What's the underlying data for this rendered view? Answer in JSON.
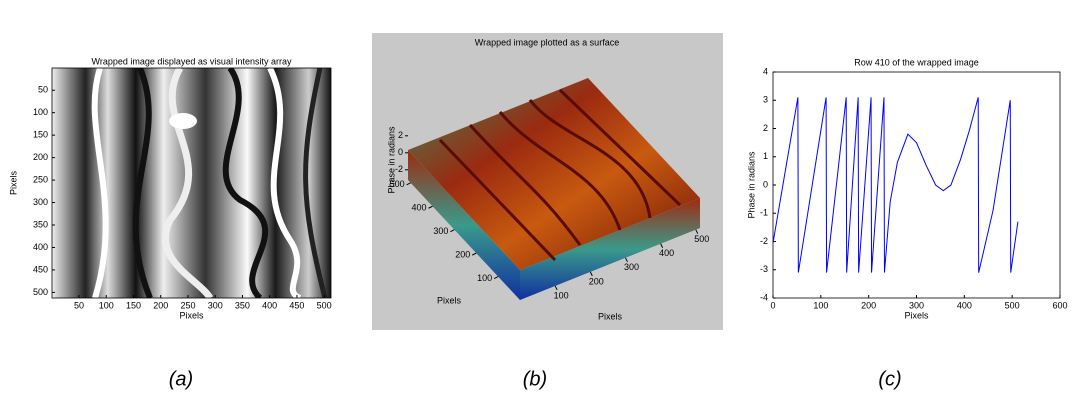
{
  "chart_data": [
    {
      "type": "image",
      "title": "Wrapped image displayed as visual intensity array",
      "xlabel": "Pixels",
      "ylabel": "Pixels",
      "xlim": [
        0.5,
        512.5
      ],
      "ylim": [
        0.5,
        512.5
      ],
      "y_reversed": true,
      "xticks": [
        50,
        100,
        150,
        200,
        250,
        300,
        350,
        400,
        450,
        500
      ],
      "yticks": [
        50,
        100,
        150,
        200,
        250,
        300,
        350,
        400,
        450,
        500
      ],
      "caption": "(a)"
    },
    {
      "type": "surface",
      "title": "Wrapped image plotted as a surface",
      "zlabel": "Phase in radians",
      "xlabel": "Pixels",
      "ylabel": "Pixels",
      "xlim": [
        0,
        512
      ],
      "ylim": [
        0,
        512
      ],
      "zlim": [
        -3.2,
        3.2
      ],
      "xticks": [
        100,
        200,
        300,
        400,
        500
      ],
      "yticks": [
        100,
        200,
        300,
        400,
        500
      ],
      "zticks": [
        -2,
        0,
        2
      ],
      "caption": "(b)"
    },
    {
      "type": "line",
      "title": "Row 410 of the wrapped image",
      "xlabel": "Pixels",
      "ylabel": "Phase in radians",
      "xlim": [
        0,
        600
      ],
      "ylim": [
        -4,
        4
      ],
      "xticks": [
        0,
        100,
        200,
        300,
        400,
        500,
        600
      ],
      "yticks": [
        -4,
        -3,
        -2,
        -1,
        0,
        1,
        2,
        3,
        4
      ],
      "series": [
        {
          "color": "#0000ff",
          "x": [
            0,
            52,
            53,
            111,
            112,
            153,
            154,
            178,
            179,
            205,
            206,
            232,
            233,
            245,
            260,
            282,
            300,
            320,
            340,
            356,
            372,
            392,
            410,
            429,
            430,
            460,
            496,
            497,
            512
          ],
          "values": [
            -2.05,
            3.1,
            -3.1,
            3.1,
            -3.1,
            3.1,
            -3.1,
            3.1,
            -3.1,
            3.1,
            -3.1,
            3.1,
            -3.1,
            -0.6,
            0.8,
            1.8,
            1.5,
            0.7,
            0.0,
            -0.2,
            0.0,
            0.9,
            1.9,
            3.1,
            -3.1,
            -0.9,
            3.0,
            -3.1,
            -1.3
          ]
        }
      ],
      "caption": "(c)"
    }
  ]
}
